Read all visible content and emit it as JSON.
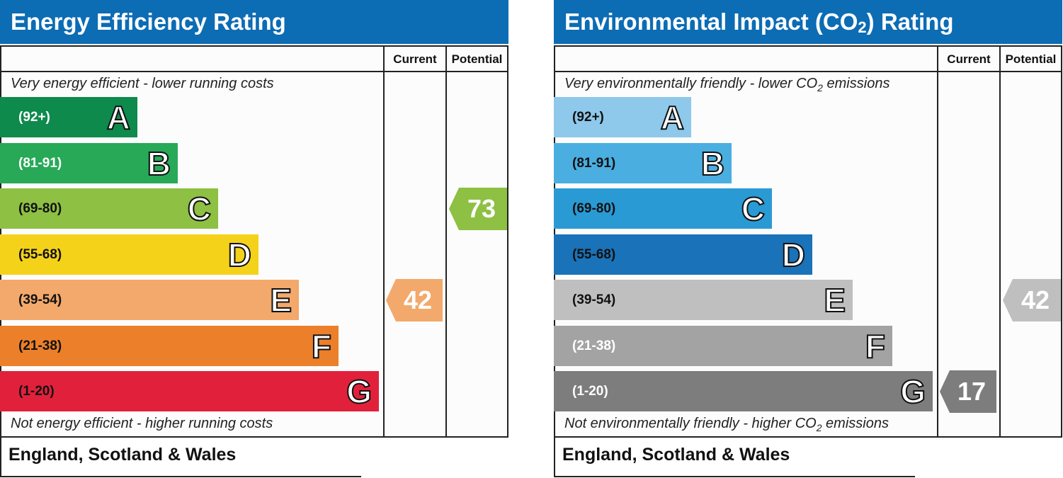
{
  "left_panel": {
    "title": "Energy Efficiency Rating",
    "col_current": "Current",
    "col_potential": "Potential",
    "top_note": "Very energy efficient - lower running costs",
    "bottom_note": "Not energy efficient - higher running costs",
    "footer": "England, Scotland & Wales",
    "bands": [
      {
        "range": "(92+)",
        "letter": "A",
        "color": "#0d8a4c",
        "text_color": "#ffffff"
      },
      {
        "range": "(81-91)",
        "letter": "B",
        "color": "#27a957",
        "text_color": "#ffffff"
      },
      {
        "range": "(69-80)",
        "letter": "C",
        "color": "#8dc043",
        "text_color": "#111111"
      },
      {
        "range": "(55-68)",
        "letter": "D",
        "color": "#f5d21a",
        "text_color": "#111111"
      },
      {
        "range": "(39-54)",
        "letter": "E",
        "color": "#f2a96b",
        "text_color": "#111111"
      },
      {
        "range": "(21-38)",
        "letter": "F",
        "color": "#ec7f2a",
        "text_color": "#111111"
      },
      {
        "range": "(1-20)",
        "letter": "G",
        "color": "#e1213b",
        "text_color": "#111111"
      }
    ],
    "current": {
      "value": "42",
      "band": "E",
      "color": "#f2a96b"
    },
    "potential": {
      "value": "73",
      "band": "C",
      "color": "#8dc043"
    }
  },
  "right_panel": {
    "title_main": "Environmental Impact (CO",
    "title_sub": "2",
    "title_end": ") Rating",
    "col_current": "Current",
    "col_potential": "Potential",
    "top_note_main": "Very environmentally friendly - lower CO",
    "top_note_sub": "2",
    "top_note_end": " emissions",
    "bottom_note_main": "Not environmentally friendly - higher CO",
    "bottom_note_sub": "2",
    "bottom_note_end": " emissions",
    "footer": "England, Scotland & Wales",
    "bands": [
      {
        "range": "(92+)",
        "letter": "A",
        "color": "#8ec8ea",
        "text_color": "#111111"
      },
      {
        "range": "(81-91)",
        "letter": "B",
        "color": "#4aaee0",
        "text_color": "#111111"
      },
      {
        "range": "(69-80)",
        "letter": "C",
        "color": "#2a9ad4",
        "text_color": "#111111"
      },
      {
        "range": "(55-68)",
        "letter": "D",
        "color": "#1a72b8",
        "text_color": "#111111"
      },
      {
        "range": "(39-54)",
        "letter": "E",
        "color": "#bfbfbf",
        "text_color": "#111111"
      },
      {
        "range": "(21-38)",
        "letter": "F",
        "color": "#a3a3a3",
        "text_color": "#ffffff"
      },
      {
        "range": "(1-20)",
        "letter": "G",
        "color": "#7d7d7d",
        "text_color": "#ffffff"
      }
    ],
    "current": {
      "value": "17",
      "band": "G",
      "color": "#7d7d7d"
    },
    "potential": {
      "value": "42",
      "band": "E",
      "color": "#bfbfbf"
    }
  },
  "chart_data": [
    {
      "type": "bar",
      "title": "Energy Efficiency Rating",
      "categories": [
        "A (92+)",
        "B (81-91)",
        "C (69-80)",
        "D (55-68)",
        "E (39-54)",
        "F (21-38)",
        "G (1-20)"
      ],
      "current": 42,
      "potential": 73
    },
    {
      "type": "bar",
      "title": "Environmental Impact (CO2) Rating",
      "categories": [
        "A (92+)",
        "B (81-91)",
        "C (69-80)",
        "D (55-68)",
        "E (39-54)",
        "F (21-38)",
        "G (1-20)"
      ],
      "current": 17,
      "potential": 42
    }
  ]
}
